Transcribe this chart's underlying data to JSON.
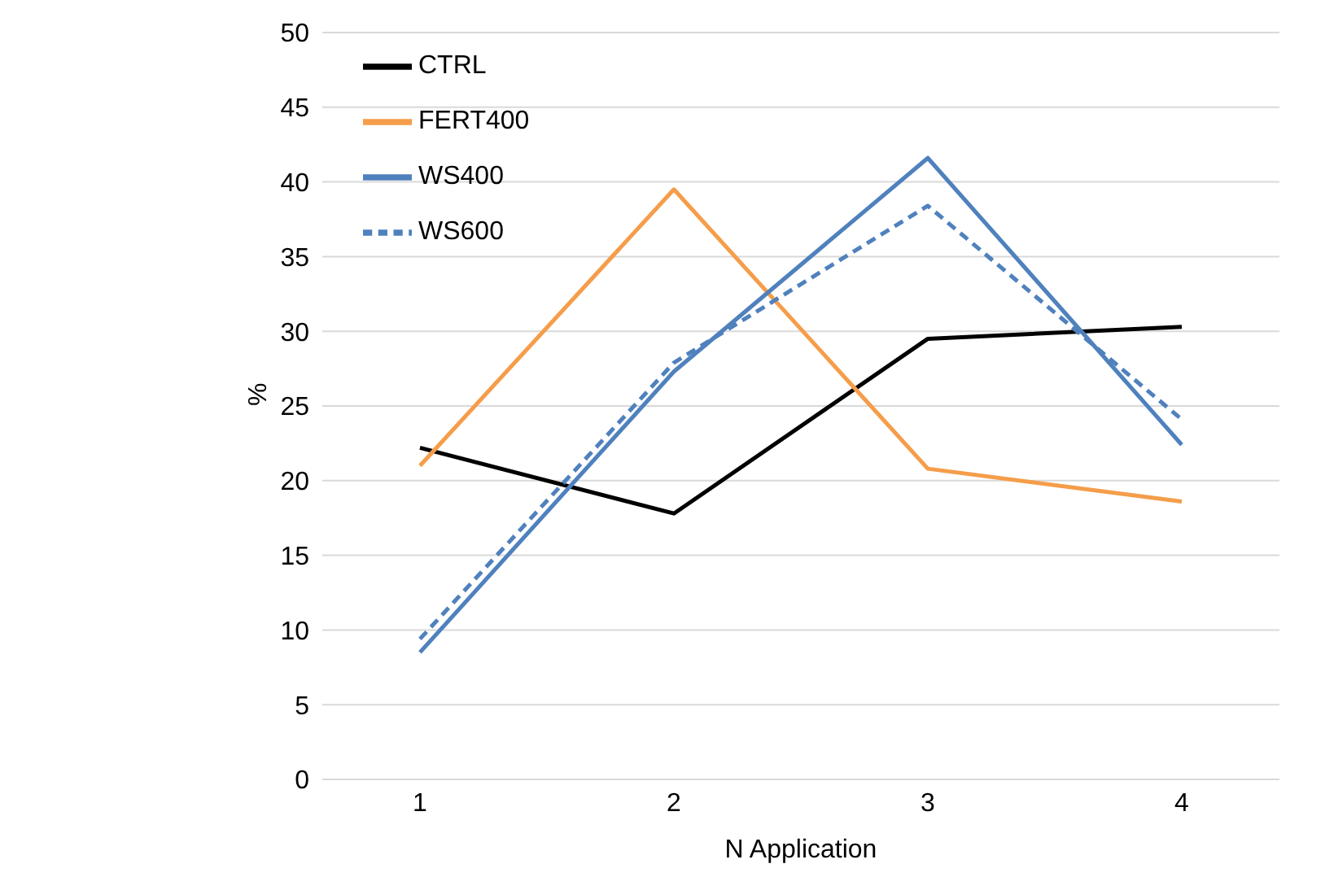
{
  "chart_data": {
    "type": "line",
    "xlabel": "N Application",
    "ylabel": "%",
    "categories": [
      "1",
      "2",
      "3",
      "4"
    ],
    "series": [
      {
        "name": "CTRL",
        "color": "#000000",
        "values": [
          22.2,
          17.8,
          29.5,
          30.3
        ]
      },
      {
        "name": "FERT400",
        "color": "#f59d4a",
        "values": [
          21.0,
          39.5,
          20.8,
          18.6
        ]
      },
      {
        "name": "WS400",
        "color": "#4f81bd",
        "values": [
          8.5,
          27.3,
          41.6,
          22.4
        ]
      },
      {
        "name": "WS600",
        "color": "#4f81bd",
        "values": [
          9.4,
          27.9,
          38.4,
          24.1
        ],
        "line_style": "dashed"
      }
    ],
    "ylim": [
      0,
      50
    ],
    "yticks": [
      0,
      5,
      10,
      15,
      20,
      25,
      30,
      35,
      40,
      45,
      50
    ],
    "grid": "y",
    "legend": "top left",
    "marker": "none",
    "line_style": "solid"
  }
}
